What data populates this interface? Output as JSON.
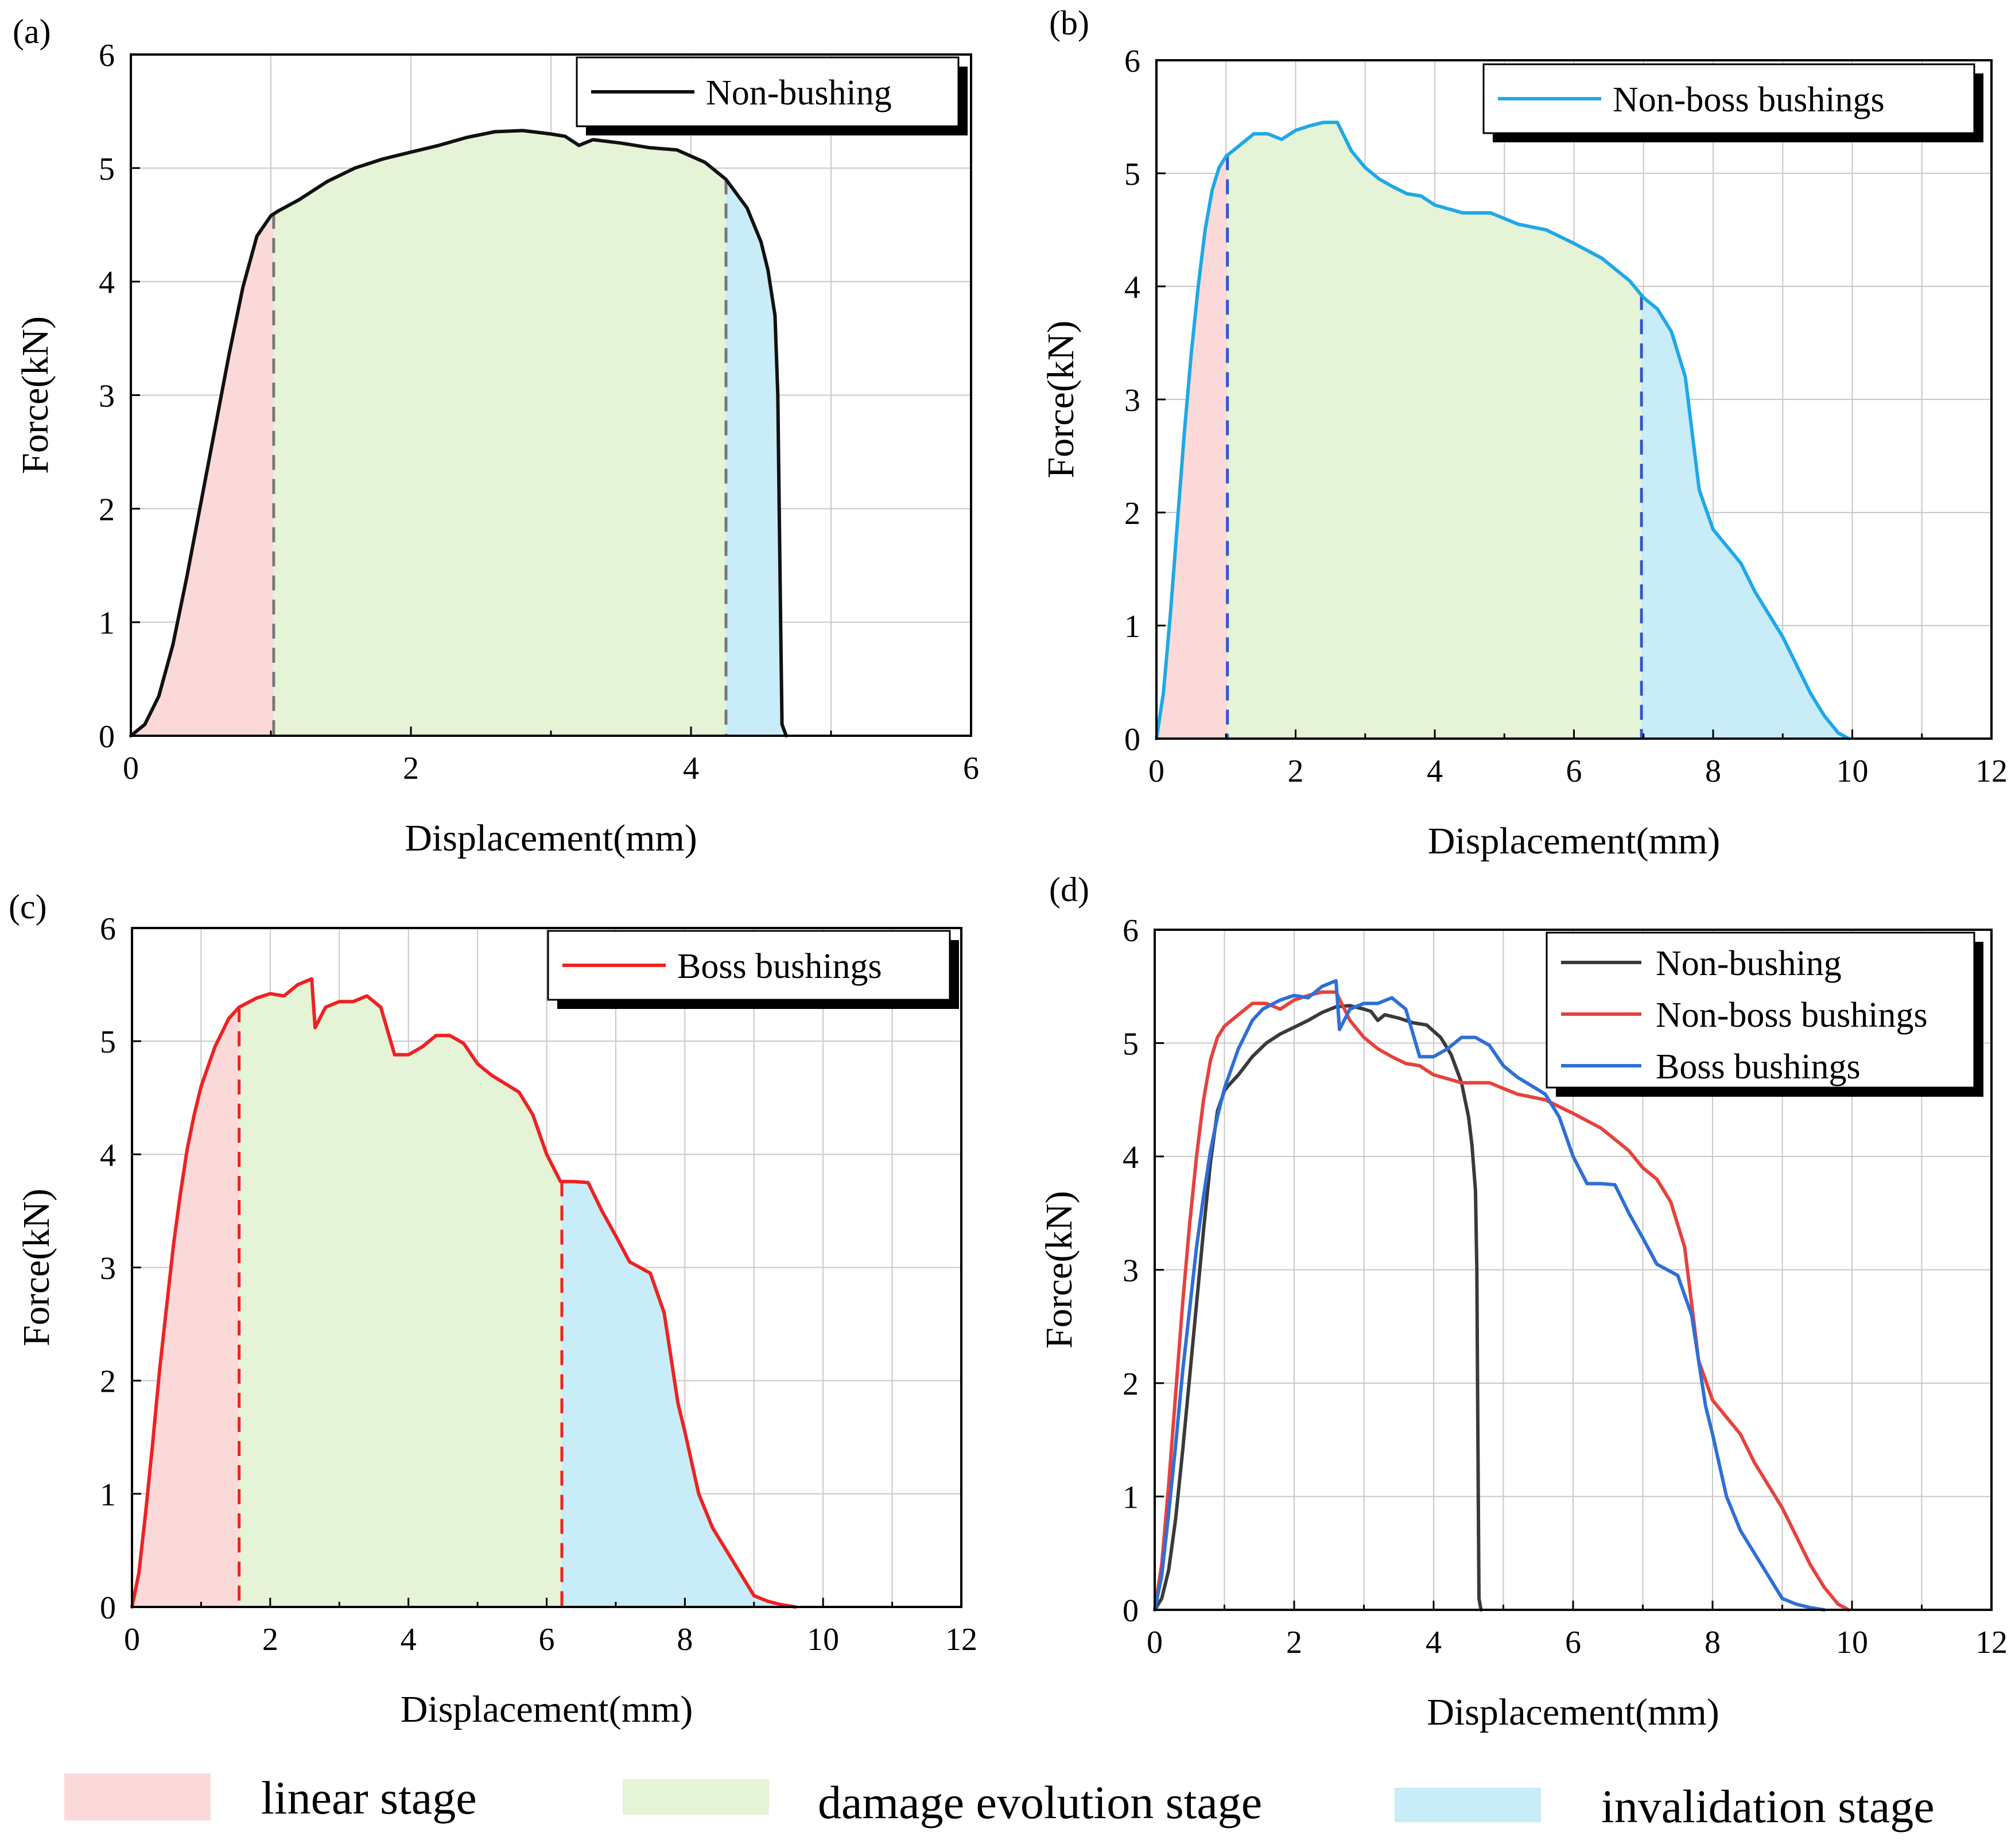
{
  "chart_data": [
    {
      "panel": "(a)",
      "type": "area",
      "xlabel": "Displacement(mm)",
      "ylabel": "Force(kN)",
      "xlim": [
        0,
        6
      ],
      "ylim": [
        0,
        6
      ],
      "xticks": [
        0,
        2,
        4,
        6
      ],
      "yticks": [
        0,
        1,
        2,
        3,
        4,
        5,
        6
      ],
      "grid_step_x": 1,
      "grid_step_y": 1,
      "legend_position": "top-right",
      "stage_boundaries": [
        1.02,
        4.25
      ],
      "boundary_color": "#777777",
      "series": [
        {
          "name": "Non-bushing",
          "color": "#111111",
          "x": [
            0,
            0.1,
            0.2,
            0.3,
            0.4,
            0.5,
            0.6,
            0.7,
            0.8,
            0.9,
            1.0,
            1.05,
            1.2,
            1.4,
            1.6,
            1.8,
            2.0,
            2.2,
            2.4,
            2.6,
            2.8,
            3.0,
            3.1,
            3.2,
            3.3,
            3.5,
            3.7,
            3.9,
            4.1,
            4.25,
            4.4,
            4.5,
            4.55,
            4.6,
            4.62,
            4.63,
            4.64,
            4.65,
            4.68
          ],
          "y": [
            0,
            0.1,
            0.35,
            0.8,
            1.4,
            2.05,
            2.7,
            3.35,
            3.95,
            4.4,
            4.58,
            4.62,
            4.72,
            4.88,
            5.0,
            5.08,
            5.14,
            5.2,
            5.27,
            5.32,
            5.33,
            5.3,
            5.28,
            5.2,
            5.25,
            5.22,
            5.18,
            5.16,
            5.05,
            4.9,
            4.65,
            4.35,
            4.1,
            3.7,
            3.0,
            2.0,
            1.0,
            0.1,
            0.0
          ]
        }
      ]
    },
    {
      "panel": "(b)",
      "type": "area",
      "xlabel": "Displacement(mm)",
      "ylabel": "Force(kN)",
      "xlim": [
        0,
        12
      ],
      "ylim": [
        0,
        6
      ],
      "xticks": [
        0,
        2,
        4,
        6,
        8,
        10,
        12
      ],
      "yticks": [
        0,
        1,
        2,
        3,
        4,
        5,
        6
      ],
      "grid_step_x": 1,
      "grid_step_y": 1,
      "legend_position": "top-right",
      "stage_boundaries": [
        1.02,
        6.97
      ],
      "boundary_color": "#3355cc",
      "series": [
        {
          "name": "Non-boss bushings",
          "color": "#1fa8e6",
          "x": [
            0,
            0.1,
            0.2,
            0.3,
            0.4,
            0.5,
            0.6,
            0.7,
            0.8,
            0.9,
            1.0,
            1.2,
            1.4,
            1.6,
            1.8,
            2.0,
            2.2,
            2.4,
            2.6,
            2.8,
            3.0,
            3.2,
            3.4,
            3.6,
            3.8,
            4.0,
            4.4,
            4.8,
            5.2,
            5.6,
            6.0,
            6.4,
            6.8,
            7.0,
            7.2,
            7.4,
            7.6,
            7.7,
            7.8,
            8.0,
            8.2,
            8.4,
            8.6,
            8.8,
            9.0,
            9.2,
            9.4,
            9.6,
            9.8,
            9.95
          ],
          "y": [
            0,
            0.4,
            1.1,
            1.9,
            2.7,
            3.4,
            4.0,
            4.5,
            4.85,
            5.05,
            5.15,
            5.25,
            5.35,
            5.35,
            5.3,
            5.38,
            5.42,
            5.45,
            5.45,
            5.2,
            5.05,
            4.95,
            4.88,
            4.82,
            4.8,
            4.72,
            4.65,
            4.65,
            4.55,
            4.5,
            4.38,
            4.25,
            4.05,
            3.9,
            3.8,
            3.6,
            3.2,
            2.7,
            2.2,
            1.85,
            1.7,
            1.55,
            1.3,
            1.1,
            0.9,
            0.65,
            0.4,
            0.2,
            0.05,
            0.0
          ]
        }
      ]
    },
    {
      "panel": "(c)",
      "type": "area",
      "xlabel": "Displacement(mm)",
      "ylabel": "Force(kN)",
      "xlim": [
        0,
        12
      ],
      "ylim": [
        0,
        6
      ],
      "xticks": [
        0,
        2,
        4,
        6,
        8,
        10,
        12
      ],
      "yticks": [
        0,
        1,
        2,
        3,
        4,
        5,
        6
      ],
      "grid_step_x": 1,
      "grid_step_y": 1,
      "legend_position": "top-right",
      "stage_boundaries": [
        1.55,
        6.22
      ],
      "boundary_color": "#ee2222",
      "series": [
        {
          "name": "Boss bushings",
          "color": "#ee2222",
          "x": [
            0,
            0.1,
            0.2,
            0.3,
            0.4,
            0.5,
            0.6,
            0.7,
            0.8,
            0.9,
            1.0,
            1.2,
            1.4,
            1.55,
            1.8,
            2.0,
            2.2,
            2.4,
            2.6,
            2.65,
            2.8,
            3.0,
            3.2,
            3.4,
            3.6,
            3.8,
            4.0,
            4.2,
            4.4,
            4.6,
            4.8,
            5.0,
            5.2,
            5.6,
            5.8,
            6.0,
            6.2,
            6.4,
            6.6,
            6.8,
            7.0,
            7.2,
            7.5,
            7.7,
            7.8,
            7.9,
            8.0,
            8.2,
            8.4,
            8.6,
            8.8,
            9.0,
            9.2,
            9.4,
            9.6
          ],
          "y": [
            0,
            0.3,
            0.85,
            1.45,
            2.1,
            2.65,
            3.2,
            3.65,
            4.05,
            4.35,
            4.6,
            4.95,
            5.2,
            5.3,
            5.38,
            5.42,
            5.4,
            5.5,
            5.55,
            5.12,
            5.3,
            5.35,
            5.35,
            5.4,
            5.3,
            4.88,
            4.88,
            4.95,
            5.05,
            5.05,
            4.98,
            4.8,
            4.7,
            4.55,
            4.35,
            4.0,
            3.76,
            3.76,
            3.75,
            3.5,
            3.28,
            3.05,
            2.95,
            2.6,
            2.2,
            1.8,
            1.55,
            1.0,
            0.7,
            0.5,
            0.3,
            0.1,
            0.05,
            0.02,
            0.0
          ]
        }
      ]
    },
    {
      "panel": "(d)",
      "type": "line",
      "xlabel": "Displacement(mm)",
      "ylabel": "Force(kN)",
      "xlim": [
        0,
        12
      ],
      "ylim": [
        0,
        6
      ],
      "xticks": [
        0,
        2,
        4,
        6,
        8,
        10,
        12
      ],
      "yticks": [
        0,
        1,
        2,
        3,
        4,
        5,
        6
      ],
      "grid_step_x": 1,
      "grid_step_y": 1,
      "legend_position": "top-right",
      "series": [
        {
          "name": "Non-bushing",
          "color": "#3a3a3a",
          "x": [
            0,
            0.1,
            0.2,
            0.3,
            0.4,
            0.5,
            0.6,
            0.7,
            0.8,
            0.9,
            1.0,
            1.05,
            1.2,
            1.4,
            1.6,
            1.8,
            2.0,
            2.2,
            2.4,
            2.6,
            2.8,
            3.0,
            3.1,
            3.2,
            3.3,
            3.5,
            3.7,
            3.9,
            4.1,
            4.25,
            4.4,
            4.5,
            4.55,
            4.6,
            4.62,
            4.63,
            4.64,
            4.65,
            4.68
          ],
          "y": [
            0,
            0.1,
            0.35,
            0.8,
            1.4,
            2.05,
            2.7,
            3.35,
            3.95,
            4.4,
            4.58,
            4.62,
            4.72,
            4.88,
            5.0,
            5.08,
            5.14,
            5.2,
            5.27,
            5.32,
            5.33,
            5.3,
            5.28,
            5.2,
            5.25,
            5.22,
            5.18,
            5.16,
            5.05,
            4.9,
            4.65,
            4.35,
            4.1,
            3.7,
            3.0,
            2.0,
            1.0,
            0.1,
            0.0
          ]
        },
        {
          "name": "Non-boss bushings",
          "color": "#e8413c",
          "x": [
            0,
            0.1,
            0.2,
            0.3,
            0.4,
            0.5,
            0.6,
            0.7,
            0.8,
            0.9,
            1.0,
            1.2,
            1.4,
            1.6,
            1.8,
            2.0,
            2.2,
            2.4,
            2.6,
            2.8,
            3.0,
            3.2,
            3.4,
            3.6,
            3.8,
            4.0,
            4.4,
            4.8,
            5.2,
            5.6,
            6.0,
            6.4,
            6.8,
            7.0,
            7.2,
            7.4,
            7.6,
            7.7,
            7.8,
            8.0,
            8.2,
            8.4,
            8.6,
            8.8,
            9.0,
            9.2,
            9.4,
            9.6,
            9.8,
            9.95
          ],
          "y": [
            0,
            0.4,
            1.1,
            1.9,
            2.7,
            3.4,
            4.0,
            4.5,
            4.85,
            5.05,
            5.15,
            5.25,
            5.35,
            5.35,
            5.3,
            5.38,
            5.42,
            5.45,
            5.45,
            5.2,
            5.05,
            4.95,
            4.88,
            4.82,
            4.8,
            4.72,
            4.65,
            4.65,
            4.55,
            4.5,
            4.38,
            4.25,
            4.05,
            3.9,
            3.8,
            3.6,
            3.2,
            2.7,
            2.2,
            1.85,
            1.7,
            1.55,
            1.3,
            1.1,
            0.9,
            0.65,
            0.4,
            0.2,
            0.05,
            0.0
          ]
        },
        {
          "name": "Boss bushings",
          "color": "#2e6fd6",
          "x": [
            0,
            0.1,
            0.2,
            0.3,
            0.4,
            0.5,
            0.6,
            0.7,
            0.8,
            0.9,
            1.0,
            1.2,
            1.4,
            1.55,
            1.8,
            2.0,
            2.2,
            2.4,
            2.6,
            2.65,
            2.8,
            3.0,
            3.2,
            3.4,
            3.6,
            3.8,
            4.0,
            4.2,
            4.4,
            4.6,
            4.8,
            5.0,
            5.2,
            5.6,
            5.8,
            6.0,
            6.2,
            6.4,
            6.6,
            6.8,
            7.0,
            7.2,
            7.5,
            7.7,
            7.8,
            7.9,
            8.0,
            8.2,
            8.4,
            8.6,
            8.8,
            9.0,
            9.2,
            9.4,
            9.6
          ],
          "y": [
            0,
            0.3,
            0.85,
            1.45,
            2.1,
            2.65,
            3.2,
            3.65,
            4.05,
            4.35,
            4.6,
            4.95,
            5.2,
            5.3,
            5.38,
            5.42,
            5.4,
            5.5,
            5.55,
            5.12,
            5.3,
            5.35,
            5.35,
            5.4,
            5.3,
            4.88,
            4.88,
            4.95,
            5.05,
            5.05,
            4.98,
            4.8,
            4.7,
            4.55,
            4.35,
            4.0,
            3.76,
            3.76,
            3.75,
            3.5,
            3.28,
            3.05,
            2.95,
            2.6,
            2.2,
            1.8,
            1.55,
            1.0,
            0.7,
            0.5,
            0.3,
            0.1,
            0.05,
            0.02,
            0.0
          ]
        }
      ]
    }
  ],
  "stage_key": [
    {
      "label": "linear stage",
      "color": "#fbd9d9"
    },
    {
      "label": "damage evolution stage",
      "color": "#e5f3d6"
    },
    {
      "label": "invalidation stage",
      "color": "#c8ecf8"
    }
  ]
}
